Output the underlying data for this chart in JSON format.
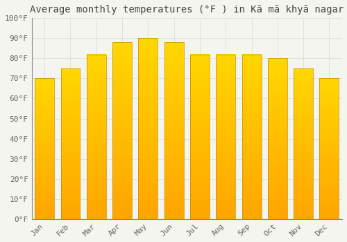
{
  "title": "Average monthly temperatures (°F ) in Kā mā khyā nagar",
  "months": [
    "Jan",
    "Feb",
    "Mar",
    "Apr",
    "May",
    "Jun",
    "Jul",
    "Aug",
    "Sep",
    "Oct",
    "Nov",
    "Dec"
  ],
  "values": [
    70,
    75,
    82,
    88,
    90,
    88,
    82,
    82,
    82,
    80,
    75,
    70
  ],
  "bar_color_top": "#FFA500",
  "bar_color_bottom": "#FFD700",
  "bar_edge_color": "#CC8800",
  "background_color": "#F5F5F0",
  "plot_bg_color": "#F5F5F0",
  "grid_color": "#DDDDDD",
  "ylim": [
    0,
    100
  ],
  "yticks": [
    0,
    10,
    20,
    30,
    40,
    50,
    60,
    70,
    80,
    90,
    100
  ],
  "ytick_labels": [
    "0°F",
    "10°F",
    "20°F",
    "30°F",
    "40°F",
    "50°F",
    "60°F",
    "70°F",
    "80°F",
    "90°F",
    "100°F"
  ],
  "title_fontsize": 10,
  "tick_fontsize": 8,
  "title_color": "#444444",
  "tick_color": "#666666",
  "bar_width": 0.75
}
